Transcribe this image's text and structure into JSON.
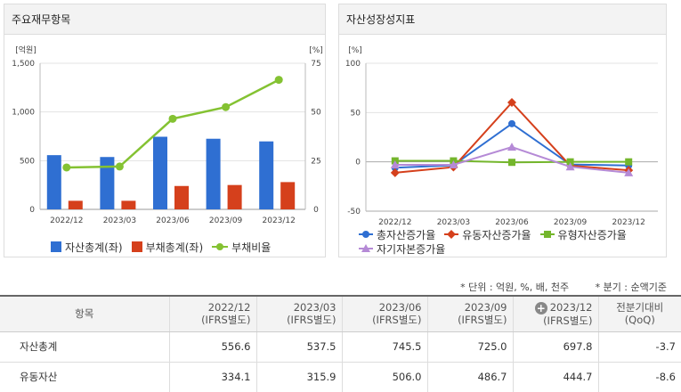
{
  "left_panel": {
    "title": "주요재무항목",
    "legend": [
      {
        "name": "자산총계(좌)",
        "color": "#2f6fd2",
        "shape": "square"
      },
      {
        "name": "부채총계(좌)",
        "color": "#d5401c",
        "shape": "square"
      },
      {
        "name": "부채비율",
        "color": "#84c232",
        "shape": "line-dot"
      }
    ]
  },
  "right_panel": {
    "title": "자산성장성지표",
    "legend": [
      {
        "name": "총자산증가율",
        "color": "#2f6fd2",
        "shape": "circle"
      },
      {
        "name": "유동자산증가율",
        "color": "#d5401c",
        "shape": "diamond"
      },
      {
        "name": "유형자산증가율",
        "color": "#74b62c",
        "shape": "square"
      },
      {
        "name": "자기자본증가율",
        "color": "#b58ad6",
        "shape": "triangle"
      }
    ]
  },
  "chart_data": [
    {
      "type": "bar",
      "title": "주요재무항목",
      "categories": [
        "2022/12",
        "2023/03",
        "2023/06",
        "2023/09",
        "2023/12"
      ],
      "ylabel_left": "[억원]",
      "ylabel_right": "[%]",
      "ylim_left": [
        0,
        1500
      ],
      "ylim_right": [
        0,
        75
      ],
      "yticks_left": [
        0,
        500,
        1000,
        1500
      ],
      "yticks_left_labels": [
        "0",
        "500",
        "1,000",
        "1,500"
      ],
      "yticks_right": [
        0,
        25,
        50,
        75
      ],
      "series": [
        {
          "name": "자산총계(좌)",
          "type": "bar",
          "axis": "left",
          "color": "#2f6fd2",
          "values": [
            556.6,
            537.5,
            745.5,
            725.0,
            697.8
          ]
        },
        {
          "name": "부채총계(좌)",
          "type": "bar",
          "axis": "left",
          "color": "#d5401c",
          "values": [
            88,
            88,
            240,
            250,
            280
          ]
        },
        {
          "name": "부채비율",
          "type": "line",
          "axis": "right",
          "color": "#84c232",
          "values": [
            21.5,
            22,
            46.5,
            52.5,
            66.5
          ]
        }
      ],
      "grid": true,
      "legend_position": "bottom"
    },
    {
      "type": "line",
      "title": "자산성장성지표",
      "categories": [
        "2022/12",
        "2023/03",
        "2023/06",
        "2023/09",
        "2023/12"
      ],
      "ylabel": "[%]",
      "ylim": [
        -50,
        100
      ],
      "yticks": [
        -50,
        0,
        50,
        100
      ],
      "series": [
        {
          "name": "총자산증가율",
          "color": "#2f6fd2",
          "marker": "circle",
          "values": [
            -6,
            -3.4,
            38.7,
            -2.7,
            -3.7
          ]
        },
        {
          "name": "유동자산증가율",
          "color": "#d5401c",
          "marker": "diamond",
          "values": [
            -11,
            -5.3,
            60.2,
            -3.8,
            -8.6
          ]
        },
        {
          "name": "유형자산증가율",
          "color": "#74b62c",
          "marker": "square",
          "values": [
            1,
            1,
            -0.5,
            0,
            0
          ]
        },
        {
          "name": "자기자본증가율",
          "color": "#b58ad6",
          "marker": "triangle",
          "values": [
            -3,
            -3,
            15,
            -5,
            -11
          ]
        }
      ],
      "grid": true,
      "legend_position": "bottom"
    }
  ],
  "notes": {
    "unit": "* 단위 : 억원, %, 배, 천주",
    "period": "* 분기 : 순액기준"
  },
  "table": {
    "header_item": "항목",
    "columns": [
      {
        "period": "2022/12",
        "basis": "(IFRS별도)"
      },
      {
        "period": "2023/03",
        "basis": "(IFRS별도)"
      },
      {
        "period": "2023/06",
        "basis": "(IFRS별도)"
      },
      {
        "period": "2023/09",
        "basis": "(IFRS별도)"
      },
      {
        "period": "2023/12",
        "basis": "(IFRS별도)"
      }
    ],
    "qoq_header": "전분기대비",
    "qoq_sub": "(QoQ)",
    "plus_icon": "+",
    "rows": [
      {
        "label": "자산총계",
        "values": [
          "556.6",
          "537.5",
          "745.5",
          "725.0",
          "697.8"
        ],
        "qoq": "-3.7"
      },
      {
        "label": "유동자산",
        "values": [
          "334.1",
          "315.9",
          "506.0",
          "486.7",
          "444.7"
        ],
        "qoq": "-8.6"
      }
    ]
  }
}
